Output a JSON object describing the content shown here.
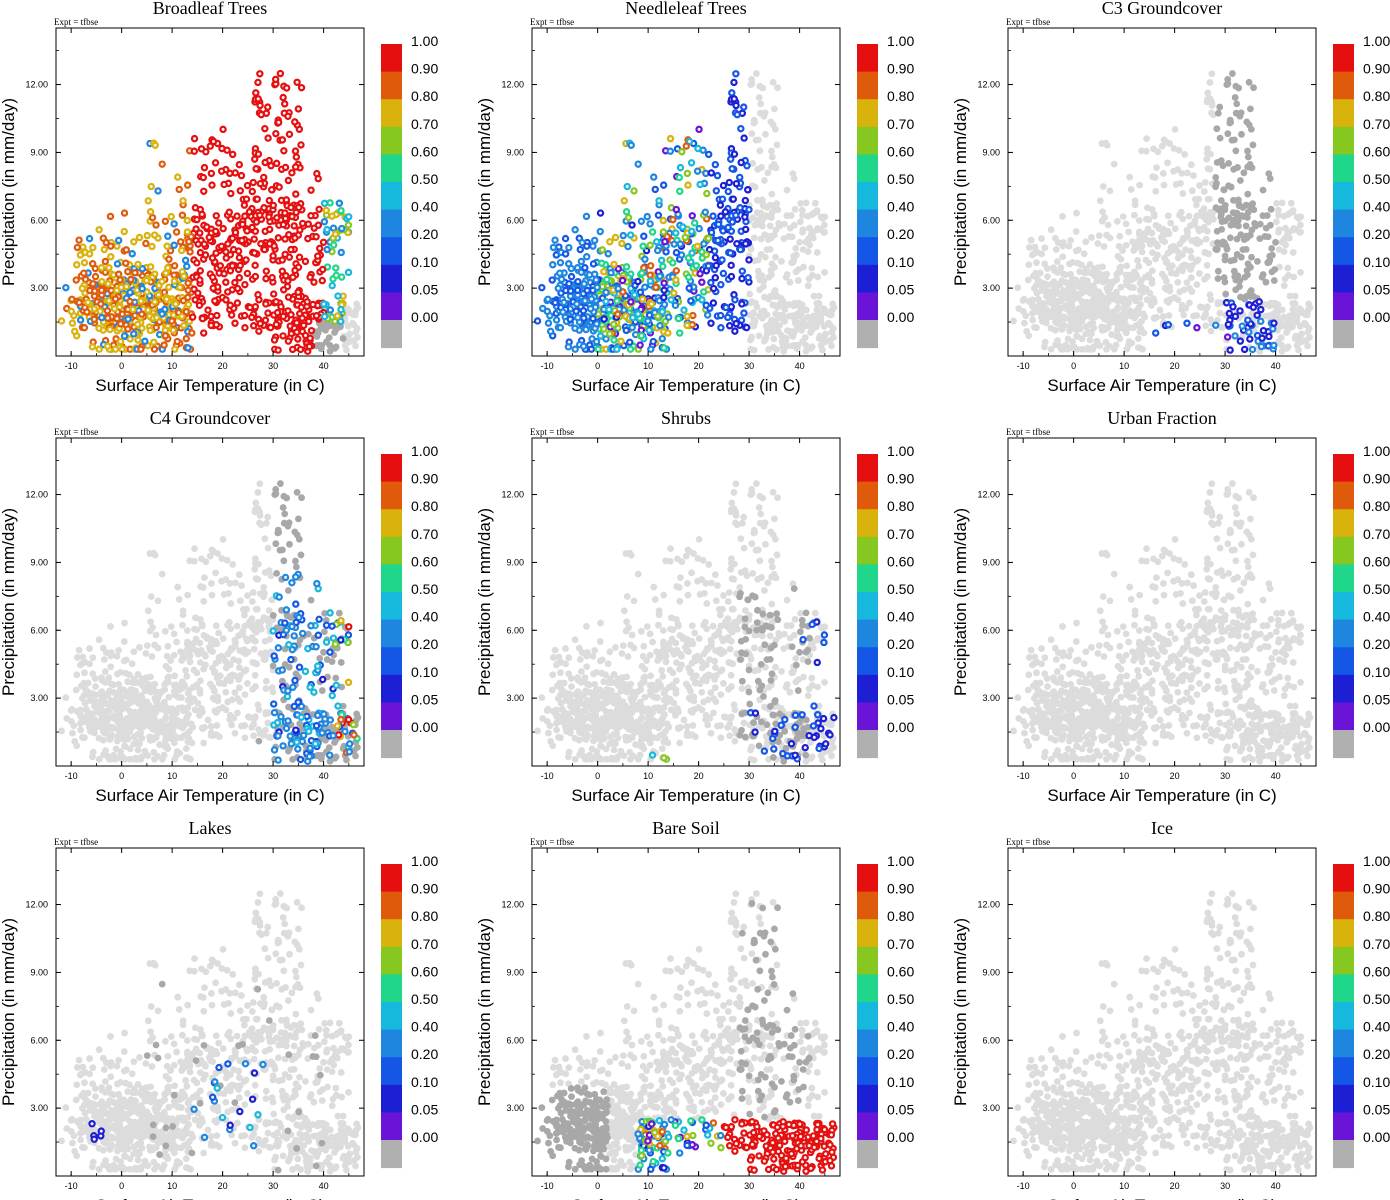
{
  "figure": {
    "xlabel": "Surface Air Temperature (in C)",
    "ylabel": "Precipitation (in mm/day)",
    "expt_label": "Expt = tfbse",
    "xlim": [
      -13,
      48
    ],
    "ylim": [
      0,
      14.5
    ],
    "x_ticks": [
      -10,
      0,
      10,
      20,
      30,
      40
    ],
    "y_ticks": [
      3,
      6,
      9,
      12
    ],
    "x_tick_labels": [
      "-10",
      "0",
      "10",
      "20",
      "30",
      "40"
    ],
    "y_tick_labels": [
      "3.00",
      "6.00",
      "9.00",
      "12.00"
    ]
  },
  "colorbar": {
    "labels": [
      "1.00",
      "0.90",
      "0.80",
      "0.70",
      "0.60",
      "0.50",
      "0.40",
      "0.20",
      "0.10",
      "0.05",
      "0.00"
    ],
    "colors": [
      "#e60f0f",
      "#e05a0c",
      "#d9b30b",
      "#86c81f",
      "#1fd68a",
      "#16b8dd",
      "#1f86e0",
      "#1457e6",
      "#1c1fd4",
      "#6a14d8",
      "#b0b0b0"
    ]
  },
  "colors": {
    "background_points": "#dcdcdc",
    "zero_points": "#a8a8a8"
  },
  "chart_data": [
    {
      "type": "scatter",
      "title": "Broadleaf Trees",
      "description_key": "broadleaf"
    },
    {
      "type": "scatter",
      "title": "Needleleaf Trees",
      "description_key": "needleleaf"
    },
    {
      "type": "scatter",
      "title": "C3 Groundcover",
      "description_key": "c3"
    },
    {
      "type": "scatter",
      "title": "C4 Groundcover",
      "description_key": "c4"
    },
    {
      "type": "scatter",
      "title": "Shrubs",
      "description_key": "shrubs"
    },
    {
      "type": "scatter",
      "title": "Urban Fraction",
      "description_key": "urban"
    },
    {
      "type": "scatter",
      "title": "Lakes",
      "description_key": "lakes"
    },
    {
      "type": "scatter",
      "title": "Bare Soil",
      "description_key": "baresoil"
    },
    {
      "type": "scatter",
      "title": "Ice",
      "description_key": "ice"
    }
  ]
}
